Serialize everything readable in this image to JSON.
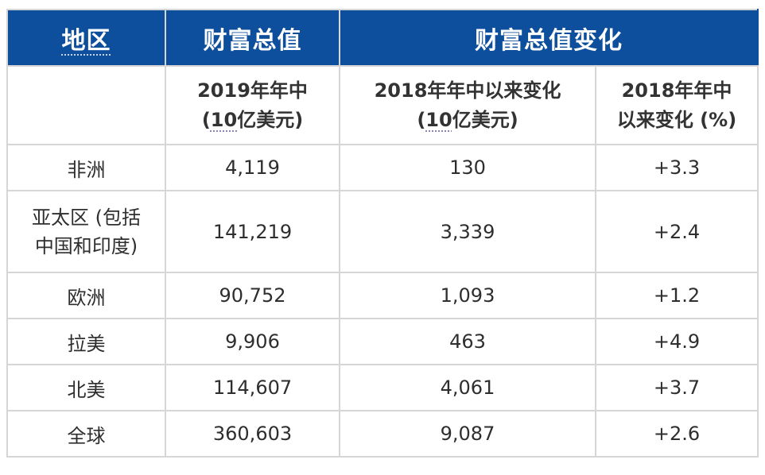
{
  "header": {
    "region": "地区",
    "wealth": "财富总值",
    "change": "财富总值变化"
  },
  "subheader": {
    "wealth_2019_line1": "2019年年中",
    "wealth_2019_line2_pre": "(",
    "wealth_2019_line2_num": "10",
    "wealth_2019_line2_post": "亿美元)",
    "change_abs_line1": "2018年年中以来变化",
    "change_abs_line2_pre": "(",
    "change_abs_line2_num": "10",
    "change_abs_line2_post": "亿美元)",
    "change_pct_line1": "2018年年中",
    "change_pct_line2": "以来变化 (%)"
  },
  "rows": [
    {
      "region_line1": "非洲",
      "region_line2": "",
      "wealth": "4,119",
      "change_abs": "130",
      "change_pct": "+3.3"
    },
    {
      "region_line1": "亚太区 (包括",
      "region_line2": "中国和印度)",
      "wealth": "141,219",
      "change_abs": "3,339",
      "change_pct": "+2.4"
    },
    {
      "region_line1": "欧洲",
      "region_line2": "",
      "wealth": "90,752",
      "change_abs": "1,093",
      "change_pct": "+1.2"
    },
    {
      "region_line1": "拉美",
      "region_line2": "",
      "wealth": "9,906",
      "change_abs": "463",
      "change_pct": "+4.9"
    },
    {
      "region_line1": "北美",
      "region_line2": "",
      "wealth": "114,607",
      "change_abs": "4,061",
      "change_pct": "+3.7"
    },
    {
      "region_line1": "全球",
      "region_line2": "",
      "wealth": "360,603",
      "change_abs": "9,087",
      "change_pct": "+2.6"
    }
  ],
  "colors": {
    "header_bg": "#0d4f9c",
    "header_text": "#ffffff",
    "grid": "#d6d6d6"
  }
}
